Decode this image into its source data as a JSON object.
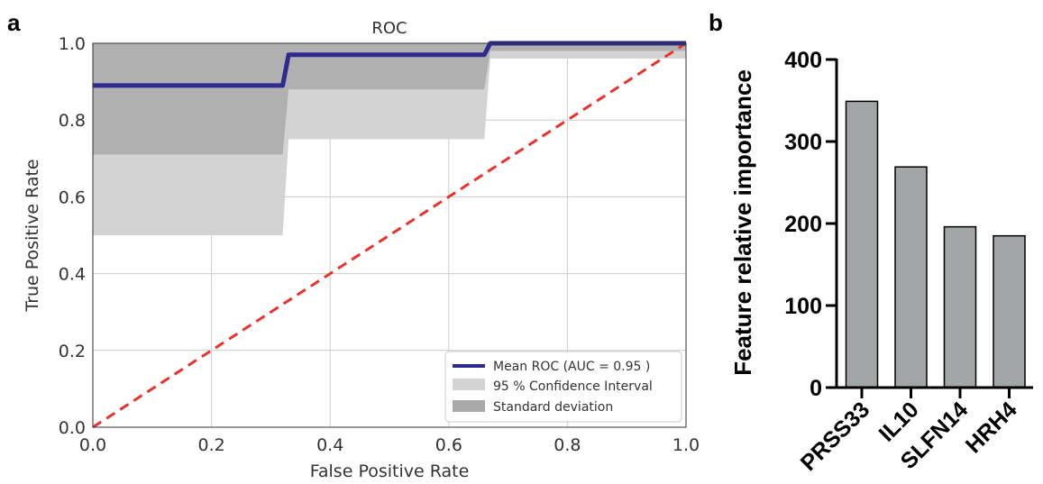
{
  "panel_labels": {
    "a": "a",
    "b": "b"
  },
  "colors": {
    "mean_roc": "#2e2a8f",
    "chance_line": "#e8332c",
    "ci_fill": "#d3d3d3",
    "std_fill": "#a9a9a9",
    "bar_fill": "#a2a6a6",
    "grid": "#cccccc"
  },
  "chart_data": [
    {
      "type": "line",
      "title": "ROC",
      "xlabel": "False Positive Rate",
      "ylabel": "True Positive Rate",
      "xlim": [
        0.0,
        1.0
      ],
      "ylim": [
        0.0,
        1.0
      ],
      "xticks": [
        "0.0",
        "0.2",
        "0.4",
        "0.6",
        "0.8",
        "1.0"
      ],
      "yticks": [
        "0.0",
        "0.2",
        "0.4",
        "0.6",
        "0.8",
        "1.0"
      ],
      "grid": true,
      "legend_position": "bottom-right",
      "series": [
        {
          "name": "Mean ROC (AUC = 0.95 )",
          "kind": "line",
          "x": [
            0.0,
            0.32,
            0.33,
            0.66,
            0.67,
            1.0
          ],
          "y": [
            0.89,
            0.89,
            0.97,
            0.97,
            1.0,
            1.0
          ]
        },
        {
          "name": "95 % Confidence Interval",
          "kind": "band",
          "x": [
            0.0,
            0.32,
            0.33,
            0.66,
            0.67,
            1.0
          ],
          "upper": [
            1.0,
            1.0,
            1.0,
            1.0,
            1.0,
            1.0
          ],
          "lower": [
            0.5,
            0.5,
            0.75,
            0.75,
            0.96,
            0.96
          ]
        },
        {
          "name": "Standard deviation",
          "kind": "band",
          "x": [
            0.0,
            0.32,
            0.33,
            0.66,
            0.67,
            1.0
          ],
          "upper": [
            1.0,
            1.0,
            1.0,
            1.0,
            1.0,
            1.0
          ],
          "lower": [
            0.71,
            0.71,
            0.88,
            0.88,
            0.98,
            0.98
          ]
        },
        {
          "name": "",
          "kind": "chance",
          "x": [
            0.0,
            1.0
          ],
          "y": [
            0.0,
            1.0
          ]
        }
      ],
      "legend": [
        "Mean ROC (AUC = 0.95 )",
        "95 % Confidence Interval",
        "Standard deviation"
      ]
    },
    {
      "type": "bar",
      "title": "",
      "xlabel": "",
      "ylabel": "Feature relative importance",
      "categories": [
        "PRSS33",
        "IL10",
        "SLFN14",
        "HRH4"
      ],
      "values": [
        349,
        269,
        196,
        185
      ],
      "ylim": [
        0,
        400
      ],
      "yticks": [
        "0",
        "100",
        "200",
        "300",
        "400"
      ]
    }
  ]
}
